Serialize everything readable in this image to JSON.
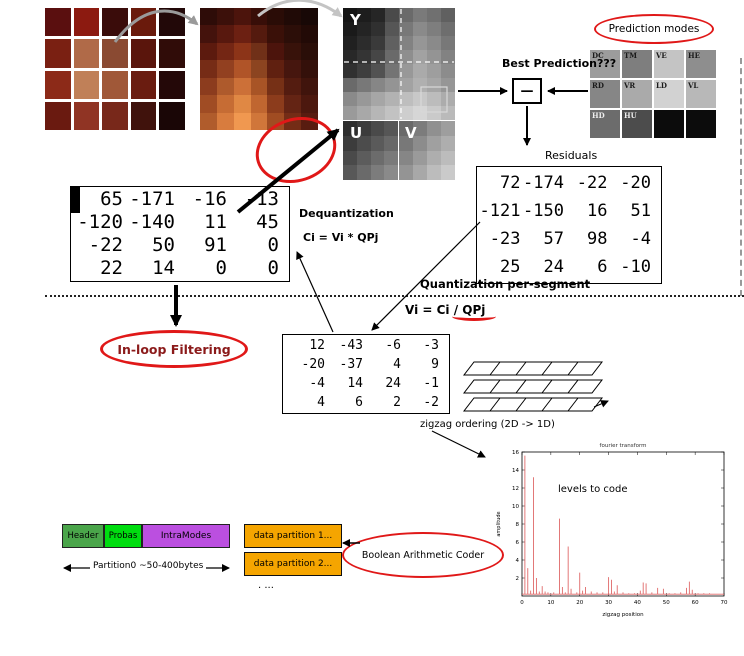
{
  "colors": {
    "red_accent": "#e01818",
    "header_green": "#4aa54a",
    "probas_green": "#00dd10",
    "intramodes_purple": "#bb4fe0",
    "partition_orange": "#f5a500",
    "plot_red": "#e06a6a"
  },
  "top": {
    "photo_mosaic": [
      [
        "#5a0f0f",
        "#8c1a10",
        "#3a0c0a",
        "#6a1a0c",
        "#220808"
      ],
      [
        "#7a2012",
        "#b06a48",
        "#8a4a32",
        "#5a150c",
        "#300c08"
      ],
      [
        "#8c2a18",
        "#c08058",
        "#a05838",
        "#6a1c10",
        "#240808"
      ],
      [
        "#6a1a10",
        "#903424",
        "#78281a",
        "#40120c",
        "#1a0606"
      ]
    ],
    "pixel_mosaic": [
      [
        "#2e0c08",
        "#3c100a",
        "#4c140c",
        "#380e08",
        "#2a0c06",
        "#200a06",
        "#180806"
      ],
      [
        "#44120c",
        "#58180e",
        "#6c2012",
        "#541a0e",
        "#3a1008",
        "#2c0e08",
        "#220a06"
      ],
      [
        "#5c1a0e",
        "#742614",
        "#8c3418",
        "#703018",
        "#4c140c",
        "#38120a",
        "#2a0e08"
      ],
      [
        "#762c16",
        "#924020",
        "#b05428",
        "#8c4420",
        "#602010",
        "#46160e",
        "#34100a"
      ],
      [
        "#8c3c1e",
        "#ae5a2c",
        "#cc7038",
        "#a85426",
        "#763016",
        "#541c10",
        "#40140c"
      ],
      [
        "#a04c24",
        "#c66c34",
        "#e08844",
        "#c06630",
        "#8c3c1c",
        "#642414",
        "#4c180e"
      ],
      [
        "#b05c2c",
        "#d87c3e",
        "#f09850",
        "#d0763a",
        "#a04c22",
        "#742c16",
        "#581c10"
      ]
    ],
    "planes": {
      "y_label": "Y",
      "u_label": "U",
      "v_label": "V",
      "y_mosaic": [
        [
          "#151515",
          "#1d1d1d",
          "#262626",
          "#4a4a4a",
          "#6a6a6a",
          "#7a7a7a",
          "#707070",
          "#606060"
        ],
        [
          "#1a1a1a",
          "#242424",
          "#303030",
          "#565656",
          "#787878",
          "#8a8a8a",
          "#7e7e7e",
          "#6e6e6e"
        ],
        [
          "#202020",
          "#2c2c2c",
          "#3a3a3a",
          "#606060",
          "#828282",
          "#969696",
          "#8a8a8a",
          "#787878"
        ],
        [
          "#282828",
          "#343434",
          "#464646",
          "#6a6a6a",
          "#8e8e8e",
          "#a2a2a2",
          "#949494",
          "#828282"
        ],
        [
          "#303030",
          "#3e3e3e",
          "#525252",
          "#747474",
          "#989898",
          "#aaaaaa",
          "#9e9e9e",
          "#8c8c8c"
        ],
        [
          "#6a6a6a",
          "#787878",
          "#868686",
          "#949494",
          "#a2a2a2",
          "#b0b0b0",
          "#a6a6a6",
          "#969696"
        ],
        [
          "#8a8a8a",
          "#989898",
          "#a6a6a6",
          "#b2b2b2",
          "#bebebe",
          "#c8c8c8",
          "#bcbcbc",
          "#acacac"
        ],
        [
          "#9a9a9a",
          "#a8a8a8",
          "#b6b6b6",
          "#c2c2c2",
          "#cecece",
          "#d6d6d6",
          "#cacaca",
          "#bababa"
        ]
      ],
      "u_mosaic": [
        [
          "#2e2e2e",
          "#3c3c3c",
          "#4a4a4a",
          "#565656"
        ],
        [
          "#3c3c3c",
          "#4c4c4c",
          "#5a5a5a",
          "#686868"
        ],
        [
          "#4a4a4a",
          "#5c5c5c",
          "#6c6c6c",
          "#7a7a7a"
        ],
        [
          "#585858",
          "#6a6a6a",
          "#7c7c7c",
          "#8a8a8a"
        ]
      ],
      "v_mosaic": [
        [
          "#6a6a6a",
          "#7c7c7c",
          "#909090",
          "#9e9e9e"
        ],
        [
          "#787878",
          "#8c8c8c",
          "#a0a0a0",
          "#aeaeae"
        ],
        [
          "#868686",
          "#9a9a9a",
          "#aeaeae",
          "#bcbcbc"
        ],
        [
          "#949494",
          "#a8a8a8",
          "#bcbcbc",
          "#cacaca"
        ]
      ]
    },
    "prediction": {
      "ellipse_label": "Prediction modes",
      "best_label": "Best Prediction???",
      "minus": "—",
      "modes": [
        {
          "label": "DC",
          "bg": "#9c9c9c",
          "fg": "#1a1a1a"
        },
        {
          "label": "TM",
          "bg": "#7e7e7e",
          "fg": "#1a1a1a"
        },
        {
          "label": "VE",
          "bg": "#c4c4c4",
          "fg": "#1a1a1a"
        },
        {
          "label": "HE",
          "bg": "#8e8e8e",
          "fg": "#1a1a1a"
        },
        {
          "label": "RD",
          "bg": "#868686",
          "fg": "#1a1a1a"
        },
        {
          "label": "VR",
          "bg": "#aaaaaa",
          "fg": "#1a1a1a"
        },
        {
          "label": "LD",
          "bg": "#d2d2d2",
          "fg": "#1a1a1a"
        },
        {
          "label": "VL",
          "bg": "#b8b8b8",
          "fg": "#1a1a1a"
        },
        {
          "label": "HD",
          "bg": "#6c6c6c",
          "fg": "#eeeeee"
        },
        {
          "label": "HU",
          "bg": "#4c4c4c",
          "fg": "#eeeeee"
        },
        {
          "label": "",
          "bg": "#0c0c0c",
          "fg": "#eeeeee"
        },
        {
          "label": "",
          "bg": "#0c0c0c",
          "fg": "#eeeeee"
        }
      ]
    },
    "residuals_label": "Residuals",
    "residuals_matrix": [
      [
        72,
        -174,
        -22,
        -20
      ],
      [
        -121,
        -150,
        16,
        51
      ],
      [
        -23,
        57,
        98,
        -4
      ],
      [
        25,
        24,
        6,
        -10
      ]
    ],
    "dequant_matrix": [
      [
        65,
        -171,
        -16,
        -13
      ],
      [
        -120,
        -140,
        11,
        45
      ],
      [
        -22,
        50,
        91,
        0
      ],
      [
        22,
        14,
        0,
        0
      ]
    ],
    "dequantization_label": "Dequantization",
    "dequant_formula": "Ci = Vi * QPj"
  },
  "middle": {
    "quantization_label": "Quantization per-segment",
    "quant_formula_pre": "Vi = Ci / ",
    "quant_formula_qpj": "QPj",
    "inloop_label": "In-loop Filtering",
    "quantized_matrix": [
      [
        12,
        -43,
        -6,
        -3
      ],
      [
        -20,
        -37,
        4,
        9
      ],
      [
        -4,
        14,
        24,
        -1
      ],
      [
        4,
        6,
        2,
        -2
      ]
    ],
    "zigzag_label": "zigzag ordering  (2D -> 1D)"
  },
  "bottom": {
    "boxes": {
      "header": "Header",
      "probas": "Probas",
      "intramodes": "IntraModes",
      "data1": "data partition 1...",
      "data2": "data partition 2...",
      "more": ". ..."
    },
    "partition0_label": "Partition0 ~50-400bytes",
    "coder_label": "Boolean Arithmetic Coder"
  },
  "chart_data": {
    "type": "line",
    "title": "fourier transform",
    "xlabel": "zigzag position",
    "ylabel": "amplitude",
    "annotation": "levels to code",
    "legend": false,
    "grid": false,
    "xlim": [
      0,
      70
    ],
    "ylim": [
      0,
      16
    ],
    "xticks": [
      0,
      10,
      20,
      30,
      40,
      50,
      60,
      70
    ],
    "yticks": [
      2,
      4,
      6,
      8,
      10,
      12,
      14,
      16
    ],
    "x": [
      1,
      2,
      3,
      4,
      5,
      6,
      7,
      8,
      9,
      11,
      13,
      14,
      15,
      16,
      17,
      19,
      20,
      21,
      22,
      24,
      26,
      28,
      30,
      31,
      32,
      33,
      35,
      37,
      39,
      41,
      42,
      43,
      45,
      47,
      49,
      51,
      53,
      55,
      57,
      58,
      59,
      61,
      63,
      65,
      67,
      69
    ],
    "y": [
      15.6,
      3.1,
      0.6,
      13.2,
      2.0,
      0.5,
      1.1,
      0.5,
      0.4,
      0.4,
      8.6,
      1.0,
      0.4,
      5.5,
      0.8,
      0.4,
      2.6,
      0.6,
      1.0,
      0.5,
      0.4,
      0.4,
      2.1,
      1.8,
      0.5,
      1.2,
      0.4,
      0.3,
      0.3,
      0.6,
      1.5,
      1.4,
      0.4,
      0.9,
      0.8,
      0.3,
      0.3,
      0.4,
      0.9,
      1.6,
      0.7,
      0.3,
      0.3,
      0.3,
      0.2,
      0.2
    ]
  }
}
